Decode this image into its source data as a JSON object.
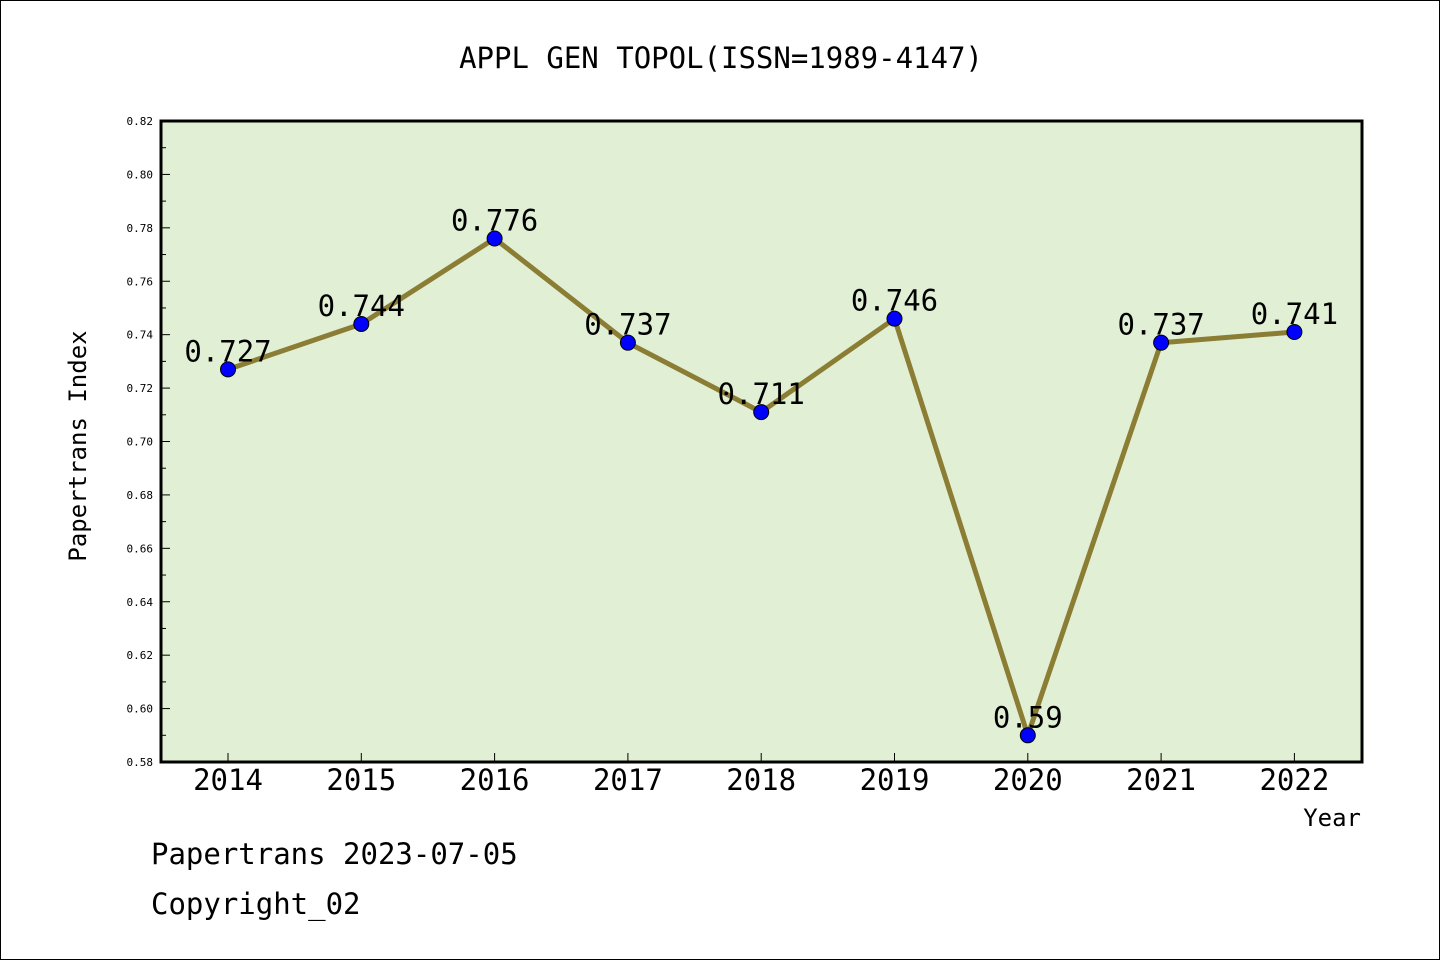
{
  "chart_data": {
    "type": "line",
    "title": "APPL GEN TOPOL(ISSN=1989-4147)",
    "xlabel": "Year",
    "ylabel": "Papertrans Index",
    "categories": [
      "2014",
      "2015",
      "2016",
      "2017",
      "2018",
      "2019",
      "2020",
      "2021",
      "2022"
    ],
    "series": [
      {
        "values": [
          0.727,
          0.744,
          0.776,
          0.737,
          0.711,
          0.746,
          0.59,
          0.737,
          0.741
        ],
        "labels": [
          "0.727",
          "0.744",
          "0.776",
          "0.737",
          "0.711",
          "0.746",
          "0.59",
          "0.737",
          "0.741"
        ]
      }
    ],
    "ylim": [
      0.58,
      0.82
    ],
    "yticks": [
      "0.58",
      "0.60",
      "0.62",
      "0.64",
      "0.66",
      "0.68",
      "0.70",
      "0.72",
      "0.74",
      "0.76",
      "0.78",
      "0.80",
      "0.82"
    ],
    "grid": false,
    "colors": {
      "plot_background": "#e1efd5",
      "line": "#8b7d33",
      "marker": "#0000ff"
    }
  },
  "footer": {
    "line1": "Papertrans 2023-07-05",
    "line2": "Copyright_02"
  }
}
